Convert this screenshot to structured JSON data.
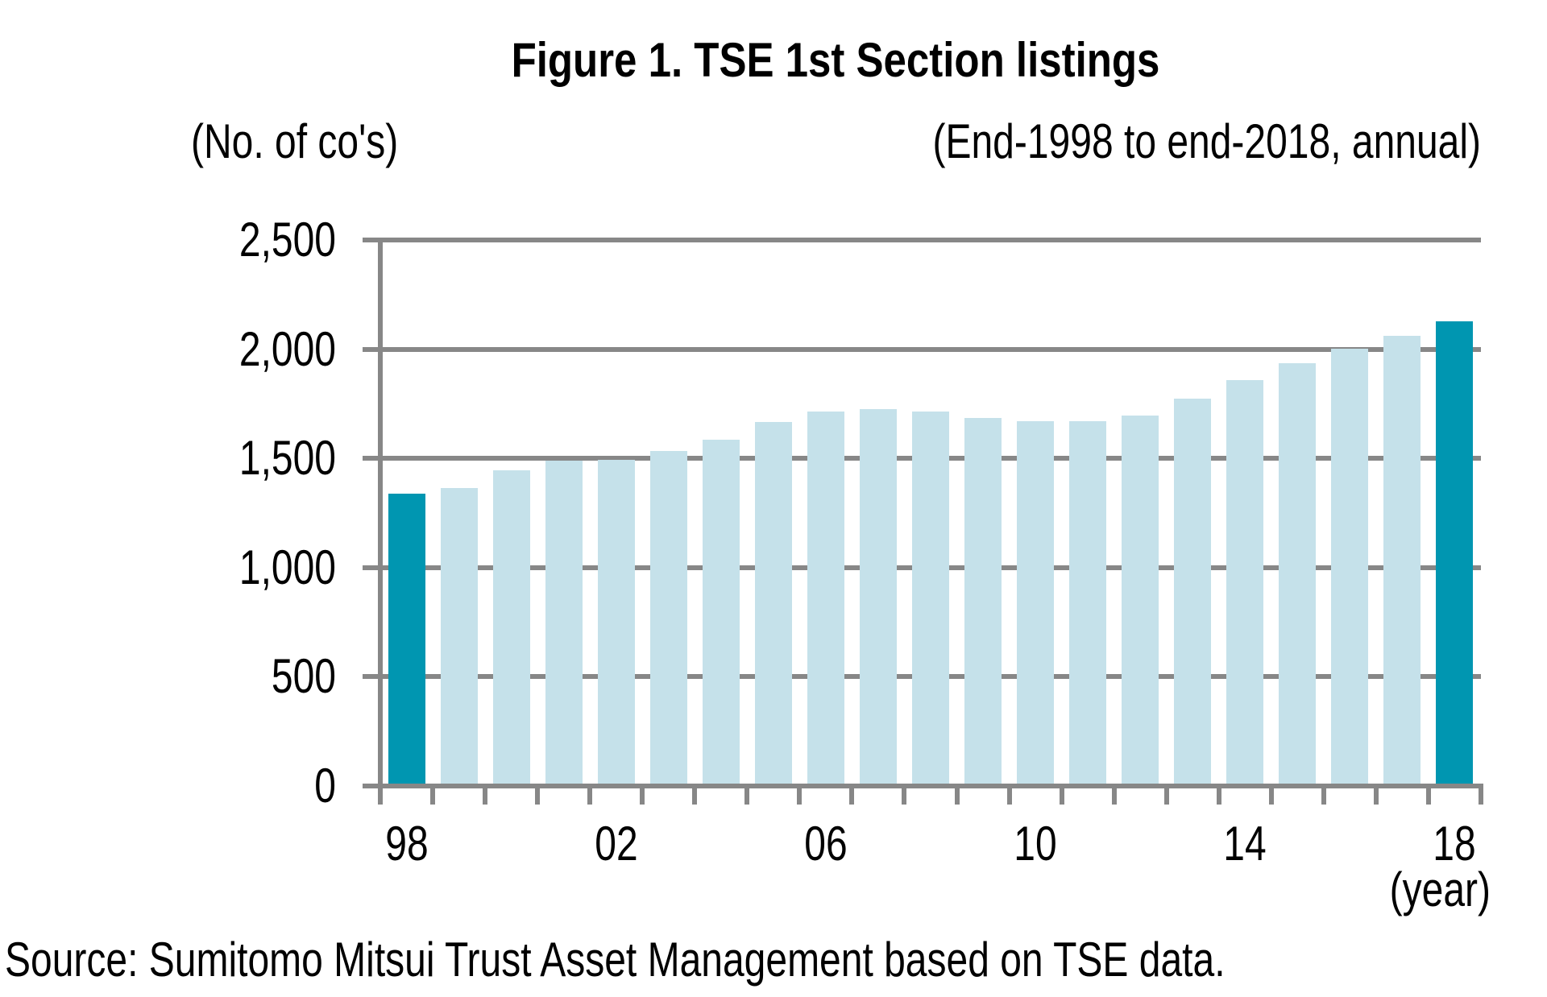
{
  "chart_data": {
    "type": "bar",
    "title": "Figure 1. TSE 1st Section listings",
    "subtitle": "(End-1998 to end-2018, annual)",
    "ylabel": "(No. of co's)",
    "xlabel": "(year)",
    "source": "Source: Sumitomo Mitsui Trust Asset Management based on TSE data.",
    "categories": [
      1998,
      1999,
      2000,
      2001,
      2002,
      2003,
      2004,
      2005,
      2006,
      2007,
      2008,
      2009,
      2010,
      2011,
      2012,
      2013,
      2014,
      2015,
      2016,
      2017,
      2018
    ],
    "values": [
      1340,
      1364,
      1447,
      1491,
      1495,
      1533,
      1584,
      1667,
      1715,
      1727,
      1715,
      1684,
      1670,
      1672,
      1695,
      1774,
      1858,
      1934,
      2002,
      2062,
      2128
    ],
    "ylim": [
      0,
      2500
    ],
    "y_ticks": [
      0,
      500,
      1000,
      1500,
      2000,
      2500
    ],
    "y_tick_labels": [
      "0",
      "500",
      "1,000",
      "1,500",
      "2,000",
      "2,500"
    ],
    "x_tick_years": [
      1998,
      2002,
      2006,
      2010,
      2014,
      2018
    ],
    "x_tick_labels": [
      "98",
      "02",
      "06",
      "10",
      "14",
      "18"
    ],
    "grid": true,
    "legend": false,
    "highlight_years": [
      1998,
      2018
    ],
    "colors": {
      "bar": "#C5E1EA",
      "bar_highlight": "#0096B1",
      "grid": "#878787",
      "axis": "#878787",
      "text": "#000000"
    }
  }
}
